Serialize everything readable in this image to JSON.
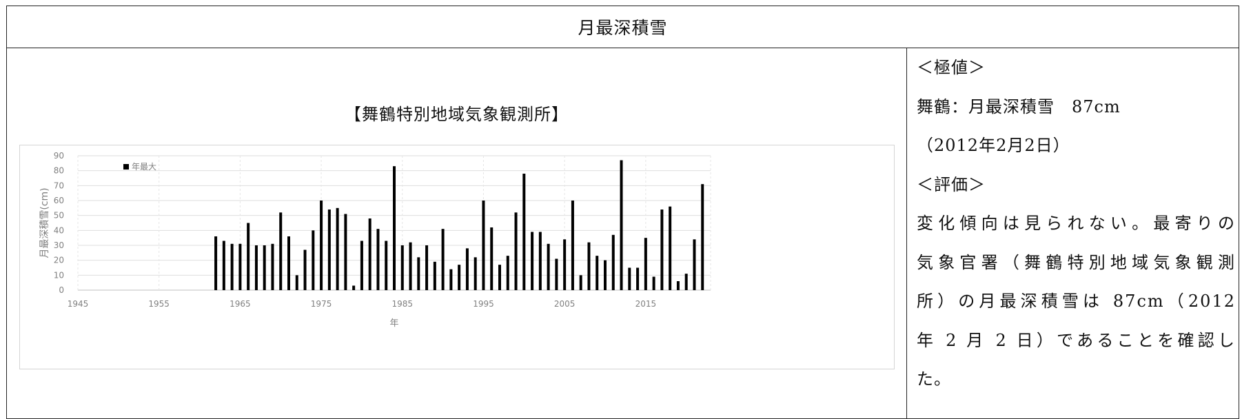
{
  "header": {
    "title": "月最深積雪"
  },
  "station_title": "【舞鶴特別地域気象観測所】",
  "notes": {
    "lines": [
      "＜極値＞",
      "舞鶴：月最深積雪　87cm",
      "（2012年2月2日）",
      "＜評価＞",
      "変化傾向は見られない。最寄りの",
      "気象官署（舞鶴特別地域気象観測",
      "所）の月最深積雪は 87cm（2012",
      "年 2 月 2 日）であることを確認し",
      "た。"
    ]
  },
  "chart_data": {
    "type": "bar",
    "title": "【舞鶴特別地域気象観測所】",
    "xlabel": "年",
    "ylabel": "月最深積雪(cm)",
    "xlim": [
      1945,
      2023
    ],
    "ylim": [
      0,
      90
    ],
    "x_ticks": [
      1945,
      1955,
      1965,
      1975,
      1985,
      1995,
      2005,
      2015
    ],
    "y_ticks": [
      0,
      10,
      20,
      30,
      40,
      50,
      60,
      70,
      80,
      90
    ],
    "grid": true,
    "legend_position": "top-left",
    "bar_color": "#000000",
    "series": [
      {
        "name": "年最大",
        "x": [
          1962,
          1963,
          1964,
          1965,
          1966,
          1967,
          1968,
          1969,
          1970,
          1971,
          1972,
          1973,
          1974,
          1975,
          1976,
          1977,
          1978,
          1979,
          1980,
          1981,
          1982,
          1983,
          1984,
          1985,
          1986,
          1987,
          1988,
          1989,
          1990,
          1991,
          1992,
          1993,
          1994,
          1995,
          1996,
          1997,
          1998,
          1999,
          2000,
          2001,
          2002,
          2003,
          2004,
          2005,
          2006,
          2007,
          2008,
          2009,
          2010,
          2011,
          2012,
          2013,
          2014,
          2015,
          2016,
          2017,
          2018,
          2019,
          2020,
          2021,
          2022
        ],
        "values": [
          36,
          33,
          31,
          31,
          45,
          30,
          30,
          31,
          52,
          36,
          10,
          27,
          40,
          60,
          54,
          55,
          51,
          3,
          33,
          48,
          41,
          33,
          83,
          30,
          32,
          22,
          30,
          19,
          41,
          14,
          17,
          28,
          22,
          60,
          42,
          17,
          23,
          52,
          78,
          39,
          39,
          31,
          21,
          34,
          60,
          10,
          32,
          23,
          20,
          37,
          87,
          15,
          15,
          35,
          9,
          54,
          56,
          6,
          11,
          34,
          71
        ]
      }
    ]
  }
}
